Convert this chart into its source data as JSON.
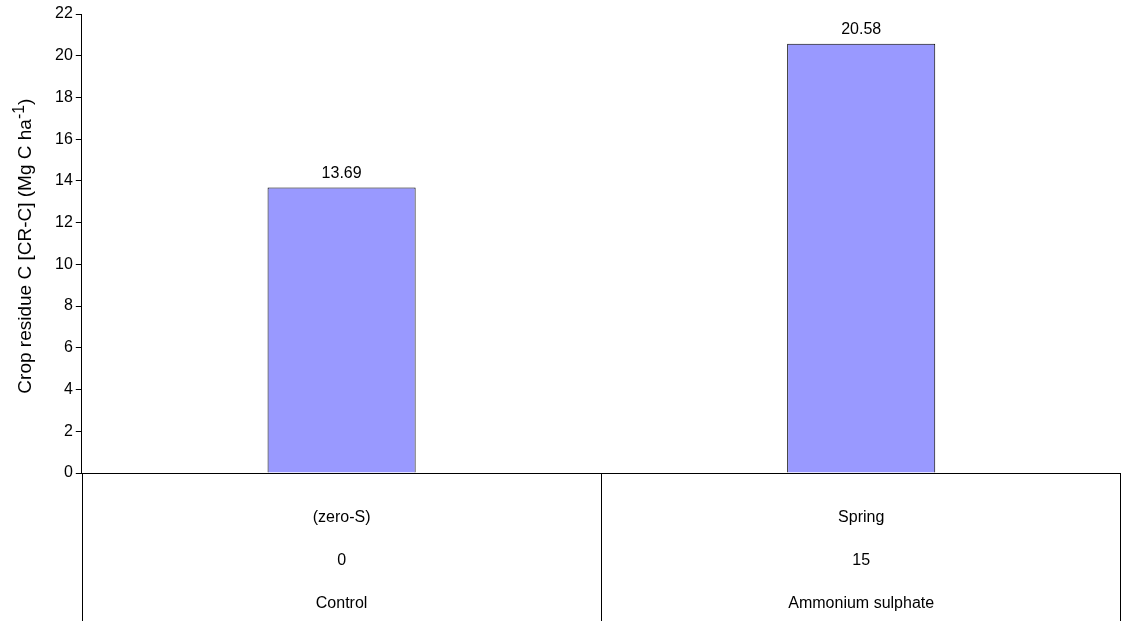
{
  "chart_data": {
    "type": "bar",
    "ylabel": "Crop residue C [CR-C] (Mg C ha$^{-1}$)",
    "categories": [
      "(zero-S)",
      "Spring"
    ],
    "values": [
      13.69,
      20.58
    ],
    "color": "#9999ff",
    "ylim": [
      0,
      22
    ],
    "yticks": [
      0,
      2,
      4,
      6,
      8,
      10,
      12,
      14,
      16,
      18,
      20,
      22
    ],
    "data_labels": true,
    "annotations": [
      "0",
      "15",
      "Control",
      "Ammonium sulphate"
    ]
  }
}
